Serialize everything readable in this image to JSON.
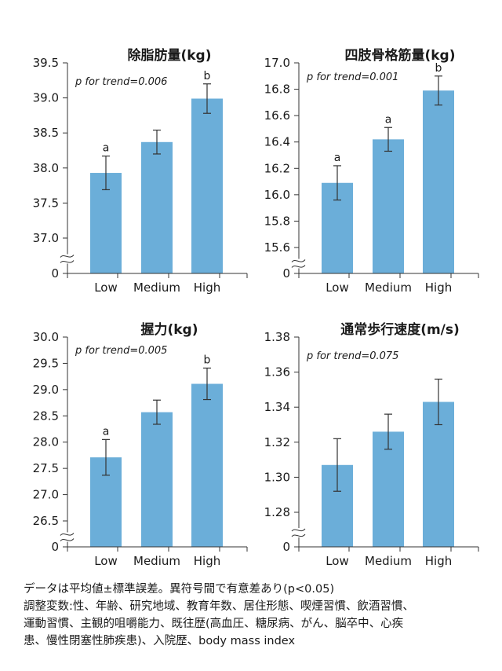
{
  "chart_data": [
    {
      "type": "bar",
      "title": "除脂肪量(kg)",
      "annotation": "p for trend=0.006",
      "categories": [
        "Low",
        "Medium",
        "High"
      ],
      "values": [
        37.93,
        38.37,
        38.99
      ],
      "errors": [
        0.24,
        0.17,
        0.21
      ],
      "sig_letters": [
        "a",
        "",
        "b"
      ],
      "ylim": [
        37.0,
        39.5
      ],
      "yticks": [
        37.0,
        37.5,
        38.0,
        38.5,
        39.0,
        39.5
      ],
      "ytick_labels": [
        "37.0",
        "37.5",
        "38.0",
        "38.5",
        "39.0",
        "39.5"
      ],
      "axis_break": true,
      "y_zero_label": "0",
      "bar_color": "#6baed9"
    },
    {
      "type": "bar",
      "title": "四肢骨格筋量(kg)",
      "annotation": "p for trend=0.001",
      "categories": [
        "Low",
        "Medium",
        "High"
      ],
      "values": [
        16.09,
        16.42,
        16.79
      ],
      "errors": [
        0.13,
        0.09,
        0.11
      ],
      "sig_letters": [
        "a",
        "a",
        "b"
      ],
      "ylim": [
        15.6,
        17.0
      ],
      "yticks": [
        15.6,
        15.8,
        16.0,
        16.2,
        16.4,
        16.6,
        16.8,
        17.0
      ],
      "ytick_labels": [
        "15.6",
        "15.8",
        "16.0",
        "16.2",
        "16.4",
        "16.6",
        "16.8",
        "17.0"
      ],
      "axis_break": true,
      "y_zero_label": "0",
      "bar_color": "#6baed9"
    },
    {
      "type": "bar",
      "title": "握力(kg)",
      "annotation": "p for trend=0.005",
      "categories": [
        "Low",
        "Medium",
        "High"
      ],
      "values": [
        27.71,
        28.57,
        29.11
      ],
      "errors": [
        0.34,
        0.23,
        0.3
      ],
      "sig_letters": [
        "a",
        "",
        "b"
      ],
      "ylim": [
        26.5,
        30.0
      ],
      "yticks": [
        26.5,
        27.0,
        27.5,
        28.0,
        28.5,
        29.0,
        29.5,
        30.0
      ],
      "ytick_labels": [
        "26.5",
        "27.0",
        "27.5",
        "28.0",
        "28.5",
        "29.0",
        "29.5",
        "30.0"
      ],
      "axis_break": true,
      "y_zero_label": "0",
      "bar_color": "#6baed9"
    },
    {
      "type": "bar",
      "title": "通常歩行速度(m/s)",
      "annotation": "p for trend=0.075",
      "categories": [
        "Low",
        "Medium",
        "High"
      ],
      "values": [
        1.307,
        1.326,
        1.343
      ],
      "errors": [
        0.015,
        0.01,
        0.013
      ],
      "sig_letters": [
        "",
        "",
        ""
      ],
      "ylim": [
        1.28,
        1.38
      ],
      "yticks": [
        1.28,
        1.3,
        1.32,
        1.34,
        1.36,
        1.38
      ],
      "ytick_labels": [
        "1.28",
        "1.30",
        "1.32",
        "1.34",
        "1.36",
        "1.38"
      ],
      "axis_break": true,
      "y_zero_label": "0",
      "bar_color": "#6baed9"
    }
  ],
  "notes": {
    "line1": "データは平均値±標準誤差。異符号間で有意差あり(p<0.05)",
    "line2": "調整変数:性、年齢、研究地域、教育年数、居住形態、喫煙習慣、飲酒習慣、",
    "line3": "運動習慣、主観的咀嚼能力、既往歴(高血圧、糖尿病、がん、脳卒中、心疾",
    "line4": "患、慢性閉塞性肺疾患)、入院歴、body mass index"
  }
}
